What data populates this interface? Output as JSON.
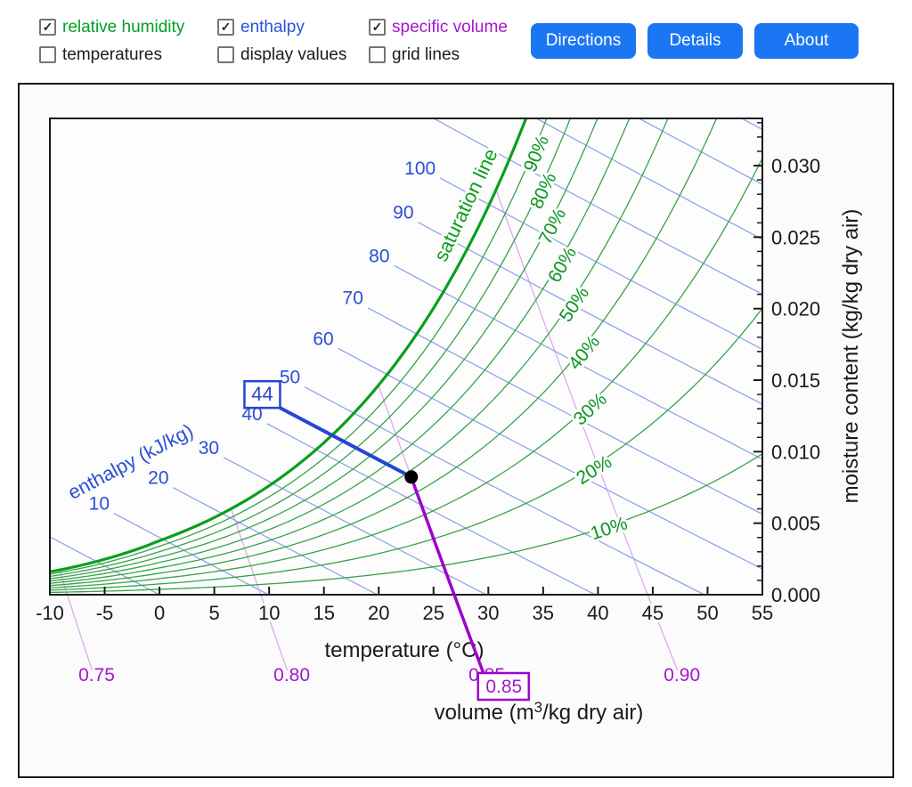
{
  "toolbar": {
    "checkboxes": [
      {
        "label": "relative humidity",
        "checked": true,
        "color": "#00a125"
      },
      {
        "label": "enthalpy",
        "checked": true,
        "color": "#2a54d8"
      },
      {
        "label": "specific volume",
        "checked": true,
        "color": "#a416ce"
      },
      {
        "label": "temperatures",
        "checked": false,
        "color": "#1c1c1c"
      },
      {
        "label": "display values",
        "checked": false,
        "color": "#1c1c1c"
      },
      {
        "label": "grid lines",
        "checked": false,
        "color": "#1c1c1c"
      }
    ],
    "buttons": [
      {
        "label": "Directions"
      },
      {
        "label": "Details"
      },
      {
        "label": "About"
      }
    ],
    "button_color": "#1b76f3"
  },
  "chart_data": {
    "type": "psychrometric",
    "pressure_kpa": 101.325,
    "x_axis": {
      "label": "temperature (°C)",
      "min": -10,
      "max": 55,
      "tick_step": 5,
      "ticks": [
        -10,
        -5,
        0,
        5,
        10,
        15,
        20,
        25,
        30,
        35,
        40,
        45,
        50,
        55
      ]
    },
    "y_axis": {
      "label": "moisture content (kg/kg dry air)",
      "min": 0,
      "max": 0.0333,
      "major_tick_step": 0.005,
      "minor_tick_step": 0.001,
      "tick_labels": [
        "0.000",
        "0.005",
        "0.010",
        "0.015",
        "0.020",
        "0.025",
        "0.030"
      ]
    },
    "volume_axis_title": {
      "prefix": "volume (m",
      "superscript": "3",
      "suffix": "/kg dry air)"
    },
    "saturation_line": {
      "label": "saturation line"
    },
    "rh_curves": {
      "values_percent": [
        10,
        20,
        30,
        40,
        50,
        60,
        70,
        80,
        90
      ],
      "labels": [
        "10%",
        "20%",
        "30%",
        "40%",
        "50%",
        "60%",
        "70%",
        "80%",
        "90%"
      ],
      "label_anchor_w": [
        0.00467,
        0.0088,
        0.0131,
        0.0171,
        0.0205,
        0.0233,
        0.026,
        0.0285,
        0.0311
      ]
    },
    "enthalpy_lines": {
      "title": "enthalpy (kJ/kg)",
      "labeled_values": [
        10,
        20,
        30,
        40,
        50,
        60,
        70,
        80,
        90,
        100
      ],
      "unlabeled_values": [
        0,
        110,
        120,
        130,
        140
      ]
    },
    "volume_lines": {
      "values": [
        0.75,
        0.8,
        0.85,
        0.9
      ],
      "labels": [
        "0.75",
        "0.80",
        "0.85",
        "0.90"
      ]
    },
    "selected_point": {
      "temperature_c": 22.97,
      "humidity_ratio": 0.00823,
      "enthalpy_kj_per_kg": 44,
      "enthalpy_label": "44",
      "specific_volume_m3_per_kg": 0.85,
      "volume_label": "0.85"
    },
    "colors": {
      "rh_thin": "#37a24a",
      "saturation": "#0a9e1e",
      "rh_label": "#0a9523",
      "enthalpy_thin": "#8fa6e8",
      "enthalpy_label": "#2b4fd7",
      "enthalpy_selected": "#2544d4",
      "volume_thin": "#dda9f0",
      "volume_label": "#a416ce",
      "volume_selected": "#9c04cc",
      "axis": "#1a1a1a",
      "plot_bg": "#fdfdfd",
      "halo": "#fbfbfb",
      "point": "#000000"
    }
  }
}
